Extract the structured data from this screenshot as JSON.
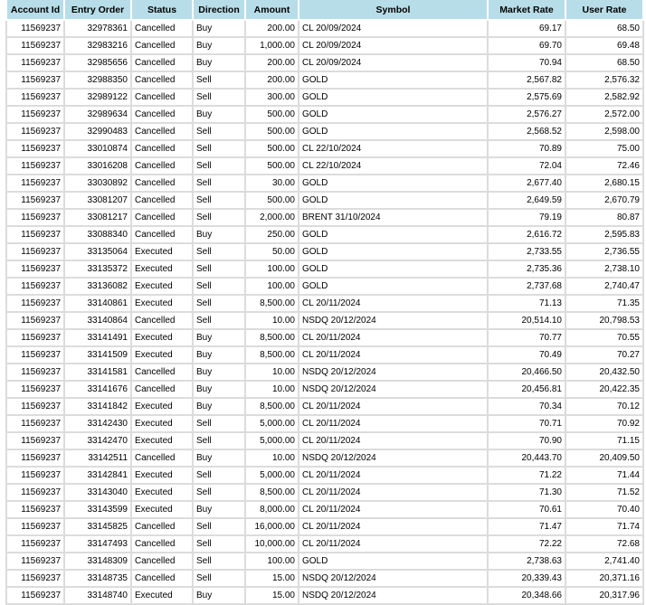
{
  "table": {
    "columns": [
      "Account Id",
      "Entry Order",
      "Status",
      "Direction",
      "Amount",
      "Symbol",
      "Market Rate",
      "User Rate"
    ],
    "rows": [
      [
        "11569237",
        "32978361",
        "Cancelled",
        "Buy",
        "200.00",
        "CL 20/09/2024",
        "69.17",
        "68.50"
      ],
      [
        "11569237",
        "32983216",
        "Cancelled",
        "Buy",
        "1,000.00",
        "CL 20/09/2024",
        "69.70",
        "69.48"
      ],
      [
        "11569237",
        "32985656",
        "Cancelled",
        "Buy",
        "200.00",
        "CL 20/09/2024",
        "70.94",
        "68.50"
      ],
      [
        "11569237",
        "32988350",
        "Cancelled",
        "Sell",
        "200.00",
        "GOLD",
        "2,567.82",
        "2,576.32"
      ],
      [
        "11569237",
        "32989122",
        "Cancelled",
        "Sell",
        "300.00",
        "GOLD",
        "2,575.69",
        "2,582.92"
      ],
      [
        "11569237",
        "32989634",
        "Cancelled",
        "Buy",
        "500.00",
        "GOLD",
        "2,576.27",
        "2,572.00"
      ],
      [
        "11569237",
        "32990483",
        "Cancelled",
        "Sell",
        "500.00",
        "GOLD",
        "2,568.52",
        "2,598.00"
      ],
      [
        "11569237",
        "33010874",
        "Cancelled",
        "Sell",
        "500.00",
        "CL 22/10/2024",
        "70.89",
        "75.00"
      ],
      [
        "11569237",
        "33016208",
        "Cancelled",
        "Sell",
        "500.00",
        "CL 22/10/2024",
        "72.04",
        "72.46"
      ],
      [
        "11569237",
        "33030892",
        "Cancelled",
        "Sell",
        "30.00",
        "GOLD",
        "2,677.40",
        "2,680.15"
      ],
      [
        "11569237",
        "33081207",
        "Cancelled",
        "Sell",
        "500.00",
        "GOLD",
        "2,649.59",
        "2,670.79"
      ],
      [
        "11569237",
        "33081217",
        "Cancelled",
        "Sell",
        "2,000.00",
        "BRENT 31/10/2024",
        "79.19",
        "80.87"
      ],
      [
        "11569237",
        "33088340",
        "Cancelled",
        "Buy",
        "250.00",
        "GOLD",
        "2,616.72",
        "2,595.83"
      ],
      [
        "11569237",
        "33135064",
        "Executed",
        "Sell",
        "50.00",
        "GOLD",
        "2,733.55",
        "2,736.55"
      ],
      [
        "11569237",
        "33135372",
        "Executed",
        "Sell",
        "100.00",
        "GOLD",
        "2,735.36",
        "2,738.10"
      ],
      [
        "11569237",
        "33136082",
        "Executed",
        "Sell",
        "100.00",
        "GOLD",
        "2,737.68",
        "2,740.47"
      ],
      [
        "11569237",
        "33140861",
        "Executed",
        "Sell",
        "8,500.00",
        "CL 20/11/2024",
        "71.13",
        "71.35"
      ],
      [
        "11569237",
        "33140864",
        "Cancelled",
        "Sell",
        "10.00",
        "NSDQ 20/12/2024",
        "20,514.10",
        "20,798.53"
      ],
      [
        "11569237",
        "33141491",
        "Executed",
        "Buy",
        "8,500.00",
        "CL 20/11/2024",
        "70.77",
        "70.55"
      ],
      [
        "11569237",
        "33141509",
        "Executed",
        "Buy",
        "8,500.00",
        "CL 20/11/2024",
        "70.49",
        "70.27"
      ],
      [
        "11569237",
        "33141581",
        "Cancelled",
        "Buy",
        "10.00",
        "NSDQ 20/12/2024",
        "20,466.50",
        "20,432.50"
      ],
      [
        "11569237",
        "33141676",
        "Cancelled",
        "Buy",
        "10.00",
        "NSDQ 20/12/2024",
        "20,456.81",
        "20,422.35"
      ],
      [
        "11569237",
        "33141842",
        "Executed",
        "Buy",
        "8,500.00",
        "CL 20/11/2024",
        "70.34",
        "70.12"
      ],
      [
        "11569237",
        "33142430",
        "Executed",
        "Sell",
        "5,000.00",
        "CL 20/11/2024",
        "70.71",
        "70.92"
      ],
      [
        "11569237",
        "33142470",
        "Executed",
        "Sell",
        "5,000.00",
        "CL 20/11/2024",
        "70.90",
        "71.15"
      ],
      [
        "11569237",
        "33142511",
        "Cancelled",
        "Buy",
        "10.00",
        "NSDQ 20/12/2024",
        "20,443.70",
        "20,409.50"
      ],
      [
        "11569237",
        "33142841",
        "Executed",
        "Sell",
        "5,000.00",
        "CL 20/11/2024",
        "71.22",
        "71.44"
      ],
      [
        "11569237",
        "33143040",
        "Executed",
        "Sell",
        "8,500.00",
        "CL 20/11/2024",
        "71.30",
        "71.52"
      ],
      [
        "11569237",
        "33143599",
        "Executed",
        "Buy",
        "8,000.00",
        "CL 20/11/2024",
        "70.61",
        "70.40"
      ],
      [
        "11569237",
        "33145825",
        "Cancelled",
        "Sell",
        "16,000.00",
        "CL 20/11/2024",
        "71.47",
        "71.74"
      ],
      [
        "11569237",
        "33147493",
        "Cancelled",
        "Sell",
        "10,000.00",
        "CL 20/11/2024",
        "72.22",
        "72.68"
      ],
      [
        "11569237",
        "33148309",
        "Cancelled",
        "Sell",
        "100.00",
        "GOLD",
        "2,738.63",
        "2,741.40"
      ],
      [
        "11569237",
        "33148735",
        "Cancelled",
        "Sell",
        "15.00",
        "NSDQ 20/12/2024",
        "20,339.43",
        "20,371.16"
      ],
      [
        "11569237",
        "33148740",
        "Executed",
        "Buy",
        "15.00",
        "NSDQ 20/12/2024",
        "20,348.66",
        "20,317.96"
      ]
    ]
  },
  "colors": {
    "header_bg": "#b7dde8",
    "grid": "#dcdcdc"
  }
}
